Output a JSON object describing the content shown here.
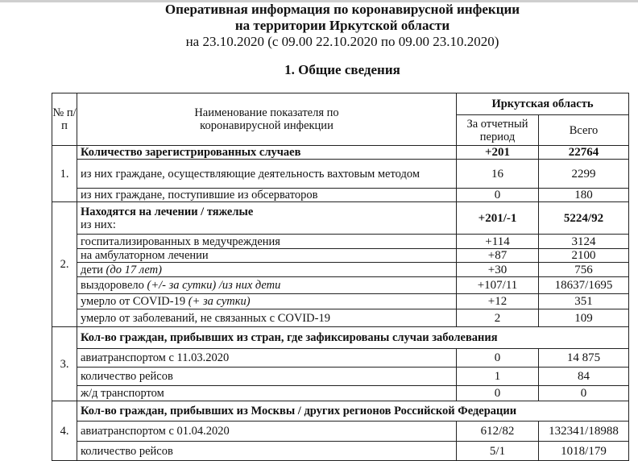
{
  "header": {
    "title_line1": "Оперативная информация по коронавирусной инфекции",
    "title_line2": "на территории Иркутской области",
    "subtitle": "на 23.10.2020 (с 09.00 22.10.2020 по 09.00 23.10.2020)",
    "section_title": "1. Общие сведения"
  },
  "table": {
    "col_num": "№ п/п",
    "col_name": "Наименование показателя по коронавирусной инфекции",
    "col_region": "Иркутская область",
    "col_period": "За отчетный период",
    "col_total": "Всего",
    "s1": {
      "num": "1.",
      "head": {
        "label": "Количество зарегистрированных случаев",
        "period": "+201",
        "total": "22764"
      },
      "rows": [
        {
          "label": "из них граждане, осуществляющие деятельность вахтовым методом",
          "period": "16",
          "total": "2299"
        },
        {
          "label": "из них граждане, поступившие из обсерваторов",
          "period": "0",
          "total": "180"
        }
      ]
    },
    "s2": {
      "num": "2.",
      "head": {
        "label": "Находятся на лечении / тяжелые",
        "sub": "из них:",
        "period": "+201/-1",
        "total": "5224/92"
      },
      "rows": [
        {
          "label": "госпитализированных в медучреждения",
          "period": "+114",
          "total": "3124"
        },
        {
          "label": "на амбулаторном лечении",
          "period": "+87",
          "total": "2100"
        },
        {
          "label": "дети",
          "note": "(до 17 лет)",
          "period": "+30",
          "total": "756"
        },
        {
          "label": "выздоровело",
          "note": "(+/- за сутки) /из них дети",
          "period": "+107/11",
          "total": "18637/1695"
        },
        {
          "label": "умерло от COVID-19",
          "note": "(+ за сутки)",
          "period": "+12",
          "total": "351"
        },
        {
          "label": "умерло от заболеваний, не связанных с COVID-19",
          "period": "2",
          "total": "109"
        }
      ]
    },
    "s3": {
      "num": "3.",
      "head": "Кол-во граждан, прибывших из стран, где зафиксированы случаи заболевания",
      "rows": [
        {
          "label": "авиатранспортом с 11.03.2020",
          "period": "0",
          "total": "14 875"
        },
        {
          "label": "количество рейсов",
          "period": "1",
          "total": "84"
        },
        {
          "label": "ж/д транспортом",
          "period": "0",
          "total": "0"
        }
      ]
    },
    "s4": {
      "num": "4.",
      "head": "Кол-во граждан, прибывших из Москвы / других регионов Российской Федерации",
      "rows": [
        {
          "label": "авиатранспортом с 01.04.2020",
          "period": "612/82",
          "total": "132341/18988"
        },
        {
          "label": "количество рейсов",
          "period": "5/1",
          "total": "1018/179"
        }
      ]
    }
  }
}
